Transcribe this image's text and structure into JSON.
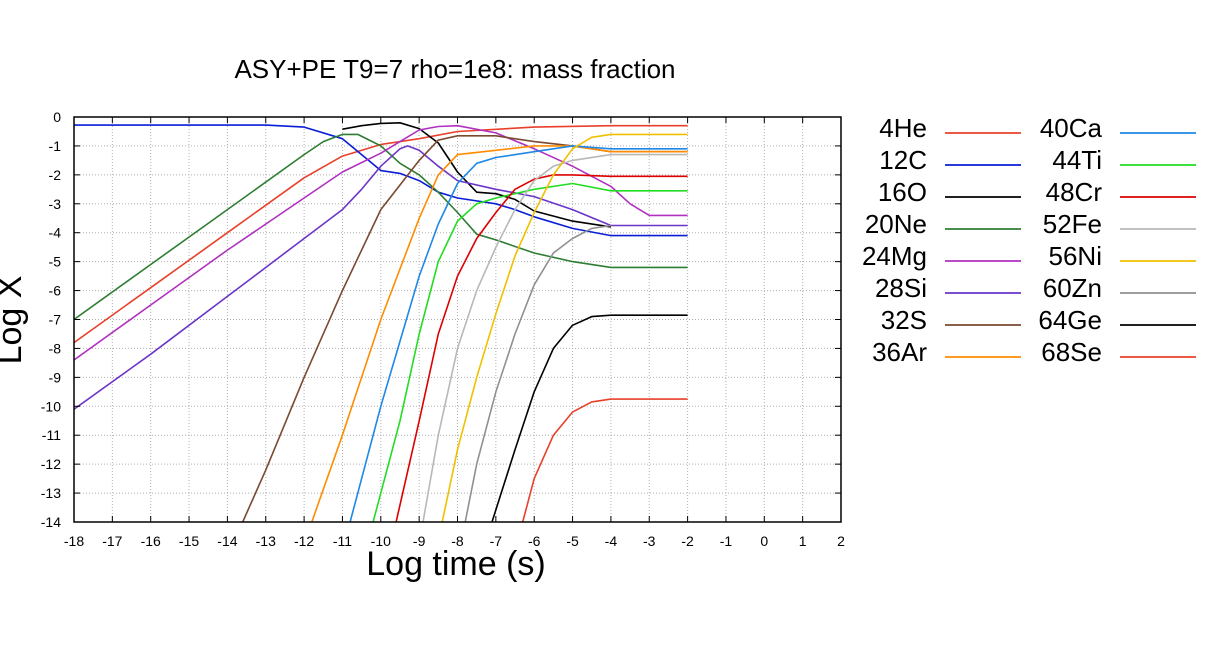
{
  "chart_data": {
    "type": "line",
    "title": "ASY+PE T9=7 rho=1e8: mass fraction",
    "xlabel": "Log time (s)",
    "ylabel": "Log X",
    "xlim": [
      -18,
      2
    ],
    "ylim": [
      -14,
      0
    ],
    "xticks": [
      "-18",
      "-17",
      "-16",
      "-15",
      "-14",
      "-13",
      "-12",
      "-11",
      "-10",
      "-9",
      "-8",
      "-7",
      "-6",
      "-5",
      "-4",
      "-3",
      "-2",
      "-1",
      "0",
      "1",
      "2"
    ],
    "yticks": [
      "0",
      "-1",
      "-2",
      "-3",
      "-4",
      "-5",
      "-6",
      "-7",
      "-8",
      "-9",
      "-10",
      "-11",
      "-12",
      "-13",
      "-14"
    ],
    "grid": true,
    "legend_position": "right, outside plot, two columns",
    "series": [
      {
        "name": "4He",
        "color": "#e8402a",
        "points": [
          [
            -18,
            -7.8
          ],
          [
            -16,
            -5.9
          ],
          [
            -14,
            -4.0
          ],
          [
            -12,
            -2.1
          ],
          [
            -11,
            -1.35
          ],
          [
            -10,
            -0.95
          ],
          [
            -9,
            -0.75
          ],
          [
            -8,
            -0.5
          ],
          [
            -6,
            -0.35
          ],
          [
            -4,
            -0.3
          ],
          [
            -2,
            -0.3
          ]
        ]
      },
      {
        "name": "12C",
        "color": "#0a1ed6",
        "points": [
          [
            -18,
            -0.28
          ],
          [
            -13,
            -0.28
          ],
          [
            -12,
            -0.35
          ],
          [
            -11,
            -0.75
          ],
          [
            -10.5,
            -1.3
          ],
          [
            -10,
            -1.85
          ],
          [
            -9.5,
            -1.95
          ],
          [
            -9,
            -2.2
          ],
          [
            -8.5,
            -2.6
          ],
          [
            -8,
            -2.8
          ],
          [
            -7,
            -3.0
          ],
          [
            -6.5,
            -3.2
          ],
          [
            -6,
            -3.45
          ],
          [
            -5,
            -3.85
          ],
          [
            -4,
            -4.1
          ],
          [
            -2,
            -4.1
          ]
        ]
      },
      {
        "name": "16O",
        "color": "#000000",
        "points": [
          [
            -11,
            -0.42
          ],
          [
            -10.5,
            -0.3
          ],
          [
            -10,
            -0.22
          ],
          [
            -9.5,
            -0.2
          ],
          [
            -9,
            -0.4
          ],
          [
            -8.5,
            -0.9
          ],
          [
            -8,
            -1.9
          ],
          [
            -7.5,
            -2.6
          ],
          [
            -7,
            -2.65
          ],
          [
            -6.5,
            -2.85
          ],
          [
            -6,
            -3.25
          ],
          [
            -5,
            -3.6
          ],
          [
            -4,
            -3.8
          ]
        ]
      },
      {
        "name": "20Ne",
        "color": "#2e7d32",
        "points": [
          [
            -18,
            -7.0
          ],
          [
            -16,
            -5.1
          ],
          [
            -14,
            -3.2
          ],
          [
            -12,
            -1.3
          ],
          [
            -11.5,
            -0.85
          ],
          [
            -11,
            -0.6
          ],
          [
            -10.6,
            -0.6
          ],
          [
            -10,
            -1.0
          ],
          [
            -9.5,
            -1.6
          ],
          [
            -9,
            -2.0
          ],
          [
            -8.5,
            -2.6
          ],
          [
            -8,
            -3.3
          ],
          [
            -7.5,
            -4.05
          ],
          [
            -7,
            -4.25
          ],
          [
            -6,
            -4.7
          ],
          [
            -5,
            -5.0
          ],
          [
            -4,
            -5.2
          ],
          [
            -2,
            -5.2
          ]
        ]
      },
      {
        "name": "24Mg",
        "color": "#b030c0",
        "points": [
          [
            -18,
            -8.4
          ],
          [
            -16,
            -6.5
          ],
          [
            -14,
            -4.6
          ],
          [
            -12,
            -2.8
          ],
          [
            -11,
            -1.9
          ],
          [
            -10,
            -1.25
          ],
          [
            -9.5,
            -0.85
          ],
          [
            -9,
            -0.45
          ],
          [
            -8.5,
            -0.33
          ],
          [
            -8,
            -0.3
          ],
          [
            -7,
            -0.55
          ],
          [
            -6,
            -1.1
          ],
          [
            -5,
            -1.7
          ],
          [
            -4,
            -2.4
          ],
          [
            -3.5,
            -3.0
          ],
          [
            -3,
            -3.4
          ],
          [
            -2,
            -3.4
          ]
        ]
      },
      {
        "name": "28Si",
        "color": "#6a35c8",
        "points": [
          [
            -18,
            -10.1
          ],
          [
            -16,
            -8.2
          ],
          [
            -14,
            -6.2
          ],
          [
            -12,
            -4.2
          ],
          [
            -11,
            -3.2
          ],
          [
            -10.5,
            -2.5
          ],
          [
            -10,
            -1.7
          ],
          [
            -9.5,
            -1.1
          ],
          [
            -9.3,
            -1.0
          ],
          [
            -9,
            -1.15
          ],
          [
            -8.5,
            -1.7
          ],
          [
            -8,
            -2.2
          ],
          [
            -7,
            -2.5
          ],
          [
            -6,
            -2.75
          ],
          [
            -5,
            -3.2
          ],
          [
            -4,
            -3.75
          ],
          [
            -2,
            -3.75
          ]
        ]
      },
      {
        "name": "32S",
        "color": "#7a4a30",
        "points": [
          [
            -13.6,
            -14
          ],
          [
            -13,
            -12.2
          ],
          [
            -12,
            -9.0
          ],
          [
            -11,
            -6.0
          ],
          [
            -10,
            -3.2
          ],
          [
            -9,
            -1.5
          ],
          [
            -8.5,
            -0.8
          ],
          [
            -8,
            -0.65
          ],
          [
            -7,
            -0.65
          ],
          [
            -6,
            -0.85
          ],
          [
            -5,
            -1.0
          ],
          [
            -4,
            -1.2
          ],
          [
            -2,
            -1.2
          ]
        ]
      },
      {
        "name": "36Ar",
        "color": "#ff8c00",
        "points": [
          [
            -11.8,
            -14
          ],
          [
            -11,
            -11
          ],
          [
            -10,
            -7.0
          ],
          [
            -9,
            -3.5
          ],
          [
            -8.5,
            -2.0
          ],
          [
            -8,
            -1.3
          ],
          [
            -7,
            -1.15
          ],
          [
            -6,
            -1.0
          ],
          [
            -5,
            -1.0
          ],
          [
            -4,
            -1.2
          ],
          [
            -2,
            -1.2
          ]
        ]
      },
      {
        "name": "40Ca",
        "color": "#1e88e5",
        "points": [
          [
            -10.8,
            -14
          ],
          [
            -10,
            -10.0
          ],
          [
            -9,
            -5.5
          ],
          [
            -8.5,
            -3.7
          ],
          [
            -8,
            -2.3
          ],
          [
            -7.5,
            -1.6
          ],
          [
            -7,
            -1.4
          ],
          [
            -6,
            -1.2
          ],
          [
            -5,
            -1.0
          ],
          [
            -4,
            -1.1
          ],
          [
            -2,
            -1.1
          ]
        ]
      },
      {
        "name": "44Ti",
        "color": "#22dd22",
        "points": [
          [
            -10.2,
            -14
          ],
          [
            -9.5,
            -10.5
          ],
          [
            -9,
            -7.5
          ],
          [
            -8.5,
            -5.0
          ],
          [
            -8,
            -3.6
          ],
          [
            -7.5,
            -3.0
          ],
          [
            -7,
            -2.8
          ],
          [
            -6,
            -2.5
          ],
          [
            -5,
            -2.3
          ],
          [
            -4,
            -2.55
          ],
          [
            -2,
            -2.55
          ]
        ]
      },
      {
        "name": "48Cr",
        "color": "#dd0000",
        "points": [
          [
            -9.6,
            -14
          ],
          [
            -9,
            -10.5
          ],
          [
            -8.5,
            -7.5
          ],
          [
            -8,
            -5.5
          ],
          [
            -7.5,
            -4.2
          ],
          [
            -7,
            -3.3
          ],
          [
            -6.5,
            -2.5
          ],
          [
            -6,
            -2.15
          ],
          [
            -5.5,
            -2.0
          ],
          [
            -5,
            -2.0
          ],
          [
            -4,
            -2.05
          ],
          [
            -2,
            -2.05
          ]
        ]
      },
      {
        "name": "52Fe",
        "color": "#b8b8b8",
        "points": [
          [
            -8.9,
            -14
          ],
          [
            -8.5,
            -11.0
          ],
          [
            -8,
            -8.0
          ],
          [
            -7.5,
            -6.0
          ],
          [
            -7,
            -4.5
          ],
          [
            -6.5,
            -3.2
          ],
          [
            -6,
            -2.2
          ],
          [
            -5.5,
            -1.7
          ],
          [
            -5,
            -1.5
          ],
          [
            -4,
            -1.3
          ],
          [
            -2,
            -1.3
          ]
        ]
      },
      {
        "name": "56Ni",
        "color": "#f0c000",
        "points": [
          [
            -8.4,
            -14
          ],
          [
            -8,
            -11.5
          ],
          [
            -7.5,
            -9.0
          ],
          [
            -7,
            -6.8
          ],
          [
            -6.5,
            -4.8
          ],
          [
            -6,
            -3.3
          ],
          [
            -5.5,
            -2.0
          ],
          [
            -5,
            -1.1
          ],
          [
            -4.5,
            -0.7
          ],
          [
            -4,
            -0.6
          ],
          [
            -2,
            -0.6
          ]
        ]
      },
      {
        "name": "60Zn",
        "color": "#909090",
        "points": [
          [
            -7.8,
            -14
          ],
          [
            -7.5,
            -12.0
          ],
          [
            -7,
            -9.5
          ],
          [
            -6.5,
            -7.5
          ],
          [
            -6,
            -5.8
          ],
          [
            -5.5,
            -4.7
          ],
          [
            -5,
            -4.2
          ],
          [
            -4.5,
            -3.85
          ],
          [
            -4,
            -3.75
          ]
        ]
      },
      {
        "name": "64Ge",
        "color": "#000000",
        "points": [
          [
            -7.1,
            -14
          ],
          [
            -6.5,
            -11.5
          ],
          [
            -6,
            -9.5
          ],
          [
            -5.5,
            -8.0
          ],
          [
            -5,
            -7.2
          ],
          [
            -4.5,
            -6.9
          ],
          [
            -4,
            -6.85
          ],
          [
            -2,
            -6.85
          ]
        ]
      },
      {
        "name": "68Se",
        "color": "#e8402a",
        "points": [
          [
            -6.3,
            -14
          ],
          [
            -6,
            -12.5
          ],
          [
            -5.5,
            -11.0
          ],
          [
            -5,
            -10.2
          ],
          [
            -4.5,
            -9.85
          ],
          [
            -4,
            -9.75
          ],
          [
            -2,
            -9.75
          ]
        ]
      }
    ]
  }
}
